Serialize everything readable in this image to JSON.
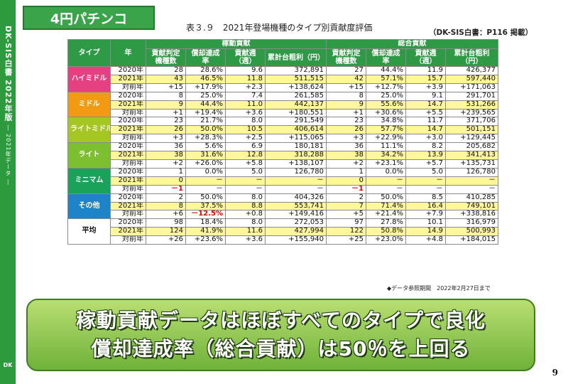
{
  "sidebar": {
    "title": "DK-SIS白書 2022年版",
    "subtitle": "― 2021年データ ―",
    "logo": "DK"
  },
  "section_badge": "4円パチンコ",
  "table_title": "表３.９　2021年登場機種のタイプ別貢献度評価",
  "table_source": "（DK-SIS白書：P116 掲載）",
  "headers": {
    "type": "タイプ",
    "year": "年",
    "group1": "稼動貢献",
    "group2": "総合貢献",
    "columns": [
      "貢献判定機種数",
      "償却達成率",
      "貢献週（週）",
      "累計台粗利（円）",
      "貢献判定機種数",
      "償却達成率",
      "貢献週（週）",
      "累計台粗利（円）"
    ]
  },
  "groups": [
    {
      "type": "ハイミドル",
      "color": "#e5407f",
      "rows": [
        {
          "year": "2020年",
          "values": [
            "28",
            "28.6%",
            "9.6",
            "372,891",
            "27",
            "44.4%",
            "11.9",
            "426,377"
          ]
        },
        {
          "year": "2021年",
          "values": [
            "43",
            "46.5%",
            "11.8",
            "511,515",
            "42",
            "57.1%",
            "15.7",
            "597,440"
          ]
        },
        {
          "year": "対前年",
          "values": [
            "+15",
            "+17.9%",
            "+2.3",
            "+138,624",
            "+15",
            "+12.7%",
            "+3.9",
            "+171,063"
          ]
        }
      ]
    },
    {
      "type": "ミドル",
      "color": "#f29a12",
      "rows": [
        {
          "year": "2020年",
          "values": [
            "8",
            "25.0%",
            "7.4",
            "261,585",
            "8",
            "25.0%",
            "9.1",
            "291,701"
          ]
        },
        {
          "year": "2021年",
          "values": [
            "9",
            "44.4%",
            "11.0",
            "442,137",
            "9",
            "55.6%",
            "14.7",
            "531,266"
          ]
        },
        {
          "year": "対前年",
          "values": [
            "+1",
            "+19.4%",
            "+3.6",
            "+180,551",
            "+1",
            "+30.6%",
            "+5.5",
            "+239,565"
          ]
        }
      ]
    },
    {
      "type": "ライトミドル",
      "color": "#a6c624",
      "rows": [
        {
          "year": "2020年",
          "values": [
            "23",
            "21.7%",
            "8.0",
            "291,549",
            "23",
            "34.8%",
            "11.7",
            "371,706"
          ]
        },
        {
          "year": "2021年",
          "values": [
            "26",
            "50.0%",
            "10.5",
            "406,614",
            "26",
            "57.7%",
            "14.7",
            "501,151"
          ]
        },
        {
          "year": "対前年",
          "values": [
            "+3",
            "+28.3%",
            "+2.5",
            "+115,065",
            "+3",
            "+22.9%",
            "+3.0",
            "+129,445"
          ]
        }
      ]
    },
    {
      "type": "ライト",
      "color": "#7cbf2f",
      "rows": [
        {
          "year": "2020年",
          "values": [
            "36",
            "5.6%",
            "6.9",
            "180,181",
            "36",
            "11.1%",
            "8.2",
            "205,682"
          ]
        },
        {
          "year": "2021年",
          "values": [
            "38",
            "31.6%",
            "12.8",
            "318,288",
            "38",
            "34.2%",
            "13.9",
            "341,413"
          ]
        },
        {
          "year": "対前年",
          "values": [
            "+2",
            "+26.0%",
            "+5.8",
            "+138,107",
            "+2",
            "+23.1%",
            "+5.7",
            "+135,731"
          ]
        }
      ]
    },
    {
      "type": "ミニマム",
      "color": "#1aa15a",
      "rows": [
        {
          "year": "2020年",
          "values": [
            "1",
            "0.0%",
            "5.0",
            "126,780",
            "1",
            "0.0%",
            "5.0",
            "126,780"
          ]
        },
        {
          "year": "2021年",
          "values": [
            "0",
            "－",
            "－",
            "－",
            "0",
            "－",
            "－",
            "－"
          ]
        },
        {
          "year": "対前年",
          "values": [
            "－1",
            "－",
            "－",
            "－",
            "－1",
            "－",
            "－",
            "－"
          ]
        }
      ]
    },
    {
      "type": "その他",
      "color": "#1e84c8",
      "rows": [
        {
          "year": "2020年",
          "values": [
            "2",
            "50.0%",
            "8.0",
            "404,326",
            "2",
            "50.0%",
            "8.5",
            "410,285"
          ]
        },
        {
          "year": "2021年",
          "values": [
            "8",
            "37.5%",
            "8.8",
            "553,741",
            "7",
            "71.4%",
            "16.4",
            "749,101"
          ]
        },
        {
          "year": "対前年",
          "values": [
            "+6",
            "－12.5%",
            "+0.8",
            "+149,416",
            "+5",
            "+21.4%",
            "+7.9",
            "+338,816"
          ]
        }
      ]
    },
    {
      "type": "平均",
      "color": "#ffffff",
      "rows": [
        {
          "year": "2020年",
          "values": [
            "98",
            "18.4%",
            "8.0",
            "272,053",
            "97",
            "27.8%",
            "10.1",
            "316,979"
          ]
        },
        {
          "year": "2021年",
          "values": [
            "124",
            "41.9%",
            "11.6",
            "427,994",
            "122",
            "50.8%",
            "14.9",
            "500,993"
          ]
        },
        {
          "year": "対前年",
          "values": [
            "+26",
            "+23.6%",
            "+3.6",
            "+155,940",
            "+25",
            "+23.0%",
            "+4.8",
            "+184,015"
          ]
        }
      ]
    }
  ],
  "data_note": "◆データ参照期間　2022年2月27日まで",
  "summary": {
    "line1": "稼動貢献データはほぼすべてのタイプで良化",
    "line2": "償却達成率（総合貢献）は50％を上回る"
  },
  "page_number": "9"
}
